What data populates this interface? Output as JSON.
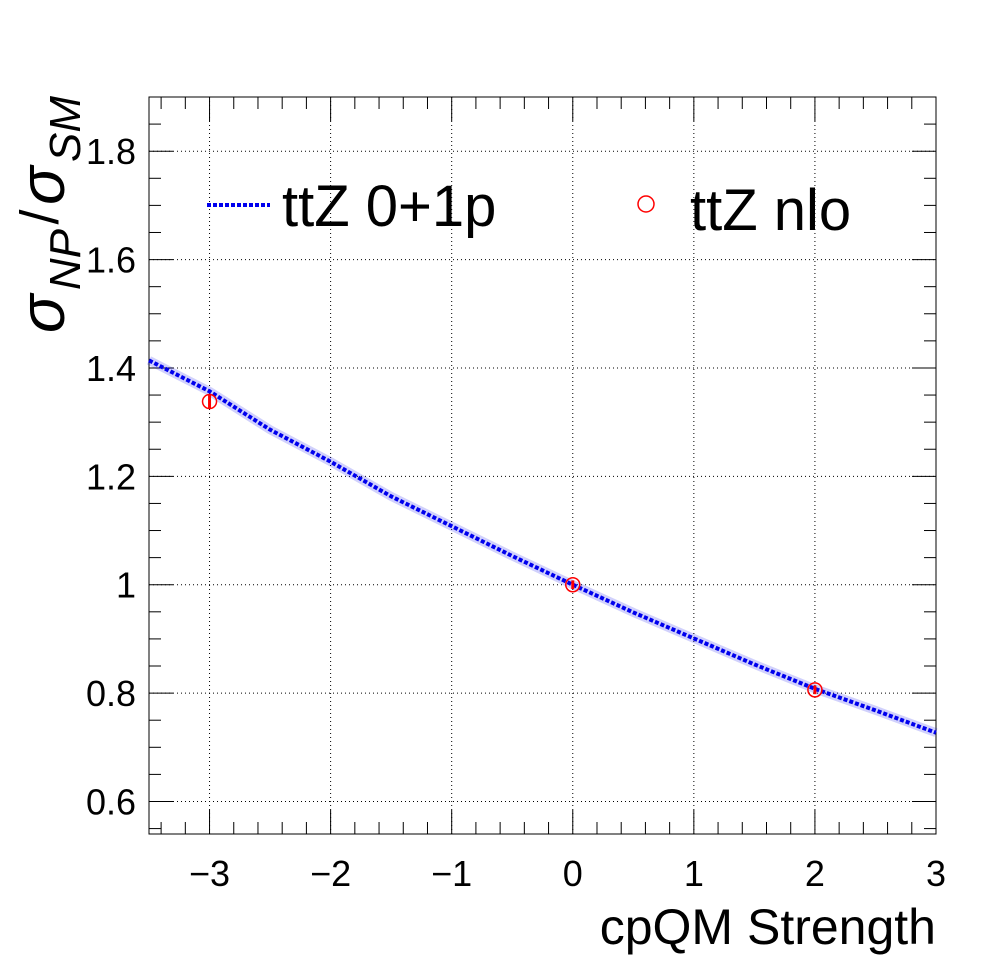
{
  "chart_data": {
    "type": "line",
    "title": "",
    "xlabel": "cpQM Strength",
    "ylabel": {
      "main": "σ",
      "num_sub": "NP",
      "sep": "/",
      "den": "σ",
      "den_sub": "SM"
    },
    "xlim": [
      -3.5,
      3.0
    ],
    "ylim": [
      0.54,
      1.9
    ],
    "x_ticks": [
      -3,
      -2,
      -1,
      0,
      1,
      2,
      3
    ],
    "x_tick_labels": [
      "−3",
      "−2",
      "−1",
      "0",
      "1",
      "2",
      "3"
    ],
    "y_ticks": [
      0.6,
      0.8,
      1.0,
      1.2,
      1.4,
      1.6,
      1.8
    ],
    "y_tick_labels": [
      "0.6",
      "0.8",
      "1",
      "1.2",
      "1.4",
      "1.6",
      "1.8"
    ],
    "grid": true,
    "legend_position": "top",
    "series": [
      {
        "name": "ttZ 0+1p",
        "kind": "curve",
        "color": "#0000ee",
        "x": [
          -3.5,
          -3.0,
          -2.5,
          -2.0,
          -1.5,
          -1.0,
          -0.5,
          0.0,
          0.5,
          1.0,
          1.5,
          2.0,
          2.5,
          3.0
        ],
        "y": [
          1.414,
          1.357,
          1.286,
          1.227,
          1.163,
          1.108,
          1.053,
          1.0,
          0.949,
          0.901,
          0.853,
          0.808,
          0.768,
          0.727
        ]
      },
      {
        "name": "ttZ nlo",
        "kind": "points",
        "color": "#ff0000",
        "x": [
          -3,
          0,
          2
        ],
        "y": [
          1.338,
          1.0,
          0.806
        ],
        "err": [
          0.012,
          0.008,
          0.008
        ]
      }
    ]
  }
}
